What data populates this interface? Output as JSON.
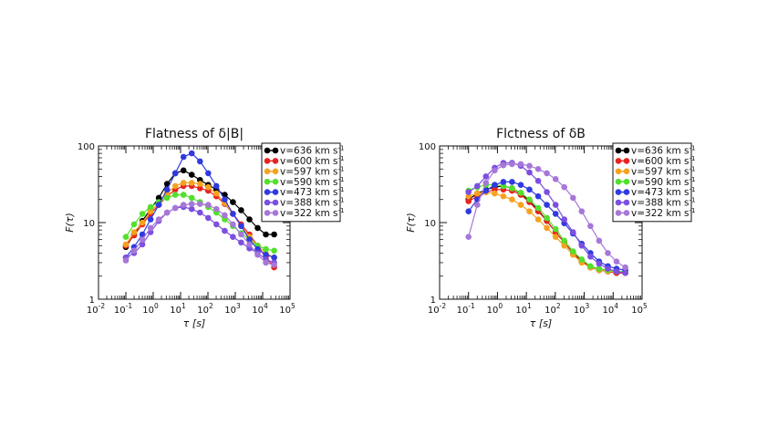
{
  "chart_data": [
    {
      "type": "line",
      "title": "Flatness of δ|B|",
      "xlabel": "τ [s]",
      "ylabel": "F(τ)",
      "xscale": "log",
      "yscale": "log",
      "xlim": [
        0.01,
        100000
      ],
      "ylim": [
        1,
        100
      ],
      "xticks": [
        {
          "v": 0.01,
          "b": "10",
          "e": "-2"
        },
        {
          "v": 0.1,
          "b": "10",
          "e": "-1"
        },
        {
          "v": 1,
          "b": "10",
          "e": "0"
        },
        {
          "v": 10,
          "b": "10",
          "e": "1"
        },
        {
          "v": 100,
          "b": "10",
          "e": "2"
        },
        {
          "v": 1000,
          "b": "10",
          "e": "3"
        },
        {
          "v": 10000,
          "b": "10",
          "e": "4"
        },
        {
          "v": 100000,
          "b": "10",
          "e": "5"
        }
      ],
      "yticks": [
        {
          "v": 1,
          "label": "1"
        },
        {
          "v": 10,
          "label": "10"
        },
        {
          "v": 100,
          "label": "100"
        }
      ],
      "legend_position": "top-right",
      "x": [
        0.1,
        0.2,
        0.4,
        0.8,
        1.6,
        3.2,
        6.4,
        12.8,
        25.6,
        51.2,
        102.4,
        204.8,
        409.6,
        819.2,
        1638.4,
        3276.8,
        6553.6,
        13107.2,
        26214.4
      ],
      "series": [
        {
          "name": "v=636 km s",
          "sup": "-1",
          "color": "#000000",
          "values": [
            4.8,
            7.0,
            10.5,
            15,
            21,
            32,
            44,
            48,
            42,
            36,
            31,
            27,
            23,
            18.5,
            14.5,
            11.0,
            8.5,
            7.0,
            7.0
          ]
        },
        {
          "name": "v=600 km s",
          "sup": "-1",
          "color": "#e8231f",
          "values": [
            5.0,
            6.8,
            9.5,
            13,
            17,
            22,
            27,
            30,
            30,
            28,
            26,
            22,
            17.5,
            13,
            9.5,
            7.0,
            5.0,
            3.5,
            2.6
          ]
        },
        {
          "name": "v=597 km s",
          "sup": "-1",
          "color": "#f6a21f",
          "values": [
            5.2,
            7.5,
            10,
            14,
            18,
            24,
            30,
            33,
            33,
            32,
            29,
            24,
            18,
            13,
            9,
            6.5,
            5.0,
            4.0,
            3.5
          ]
        },
        {
          "name": "v=590 km s",
          "sup": "-1",
          "color": "#52e02c",
          "values": [
            6.5,
            9.5,
            13,
            16,
            18.5,
            21,
            23,
            23,
            21,
            18.5,
            16,
            13.5,
            11,
            9,
            7.3,
            6,
            5,
            4.5,
            4.3
          ]
        },
        {
          "name": "v=473 km s",
          "sup": "-1",
          "color": "#2f3ae0",
          "values": [
            3.5,
            4.8,
            7,
            11,
            17,
            27,
            44,
            72,
            80,
            63,
            44,
            30,
            20,
            13,
            9,
            6,
            4.5,
            3.8,
            3.5
          ]
        },
        {
          "name": "v=388 km s",
          "sup": "-1",
          "color": "#7c4fe0",
          "values": [
            3.5,
            4.0,
            5.2,
            7.5,
            10.5,
            13.5,
            15.5,
            16,
            15,
            13.5,
            11.5,
            9.5,
            7.8,
            6.5,
            5.5,
            4.6,
            4.0,
            3.3,
            3.0
          ]
        },
        {
          "name": "v=322 km s",
          "sup": "-1",
          "color": "#a777d8",
          "values": [
            3.2,
            4.3,
            6,
            8.5,
            11,
            13.5,
            15.5,
            17,
            17.5,
            17.5,
            17,
            15,
            12.5,
            9.5,
            7,
            5.2,
            3.8,
            3.0,
            2.8
          ]
        }
      ]
    },
    {
      "type": "line",
      "title": "Flctness of δB",
      "xlabel": "τ [s]",
      "ylabel": "F(τ)",
      "xscale": "log",
      "yscale": "log",
      "xlim": [
        0.01,
        100000
      ],
      "ylim": [
        1,
        100
      ],
      "xticks": [
        {
          "v": 0.01,
          "b": "10",
          "e": "-2"
        },
        {
          "v": 0.1,
          "b": "10",
          "e": "-1"
        },
        {
          "v": 1,
          "b": "10",
          "e": "0"
        },
        {
          "v": 10,
          "b": "10",
          "e": "1"
        },
        {
          "v": 100,
          "b": "10",
          "e": "2"
        },
        {
          "v": 1000,
          "b": "10",
          "e": "3"
        },
        {
          "v": 10000,
          "b": "10",
          "e": "4"
        },
        {
          "v": 100000,
          "b": "10",
          "e": "5"
        }
      ],
      "yticks": [
        {
          "v": 1,
          "label": "1"
        },
        {
          "v": 10,
          "label": "10"
        },
        {
          "v": 100,
          "label": "100"
        }
      ],
      "legend_position": "top-right",
      "x": [
        0.1,
        0.2,
        0.4,
        0.8,
        1.6,
        3.2,
        6.4,
        12.8,
        25.6,
        51.2,
        102.4,
        204.8,
        409.6,
        819.2,
        1638.4,
        3276.8,
        6553.6,
        13107.2,
        26214.4
      ],
      "series": [
        {
          "name": "v=636 km s",
          "sup": "-1",
          "color": "#000000",
          "values": [
            20,
            24,
            27,
            29,
            30,
            28,
            24,
            19,
            14.5,
            10.5,
            7.5,
            5.5,
            4.0,
            3.2,
            2.6,
            2.4,
            2.3,
            2.2,
            2.2
          ]
        },
        {
          "name": "v=600 km s",
          "sup": "-1",
          "color": "#e8231f",
          "values": [
            19,
            22,
            25,
            27,
            27,
            26,
            23,
            18.5,
            14,
            10.5,
            7.5,
            5.5,
            4.0,
            3.1,
            2.6,
            2.4,
            2.3,
            2.2,
            2.2
          ]
        },
        {
          "name": "v=597 km s",
          "sup": "-1",
          "color": "#f6a21f",
          "values": [
            22,
            24,
            25,
            24,
            22,
            20,
            17,
            14,
            11,
            8.5,
            6.5,
            5.0,
            3.8,
            3.0,
            2.6,
            2.4,
            2.3,
            2.3,
            2.3
          ]
        },
        {
          "name": "v=590 km s",
          "sup": "-1",
          "color": "#52e02c",
          "values": [
            26,
            29,
            31,
            31,
            30,
            28,
            24.5,
            20,
            15.5,
            11.5,
            8.2,
            5.8,
            4.2,
            3.3,
            2.7,
            2.5,
            2.4,
            2.3,
            2.3
          ]
        },
        {
          "name": "v=473 km s",
          "sup": "-1",
          "color": "#2f3ae0",
          "values": [
            14,
            20,
            26,
            31,
            34,
            34,
            31,
            27,
            22,
            17,
            13,
            9.8,
            7.2,
            5.3,
            4.0,
            3.1,
            2.7,
            2.5,
            2.4
          ]
        },
        {
          "name": "v=388 km s",
          "sup": "-1",
          "color": "#7c4fe0",
          "values": [
            25,
            30,
            40,
            52,
            60,
            60,
            55,
            45,
            35,
            25,
            17,
            11,
            7.5,
            5.0,
            3.6,
            2.9,
            2.5,
            2.3,
            2.2
          ]
        },
        {
          "name": "v=322 km s",
          "sup": "-1",
          "color": "#a777d8",
          "values": [
            6.5,
            17,
            33,
            48,
            56,
            58,
            58,
            55,
            50,
            44,
            37,
            29,
            21,
            14,
            9,
            5.8,
            4.0,
            3.1,
            2.6
          ]
        }
      ]
    }
  ]
}
